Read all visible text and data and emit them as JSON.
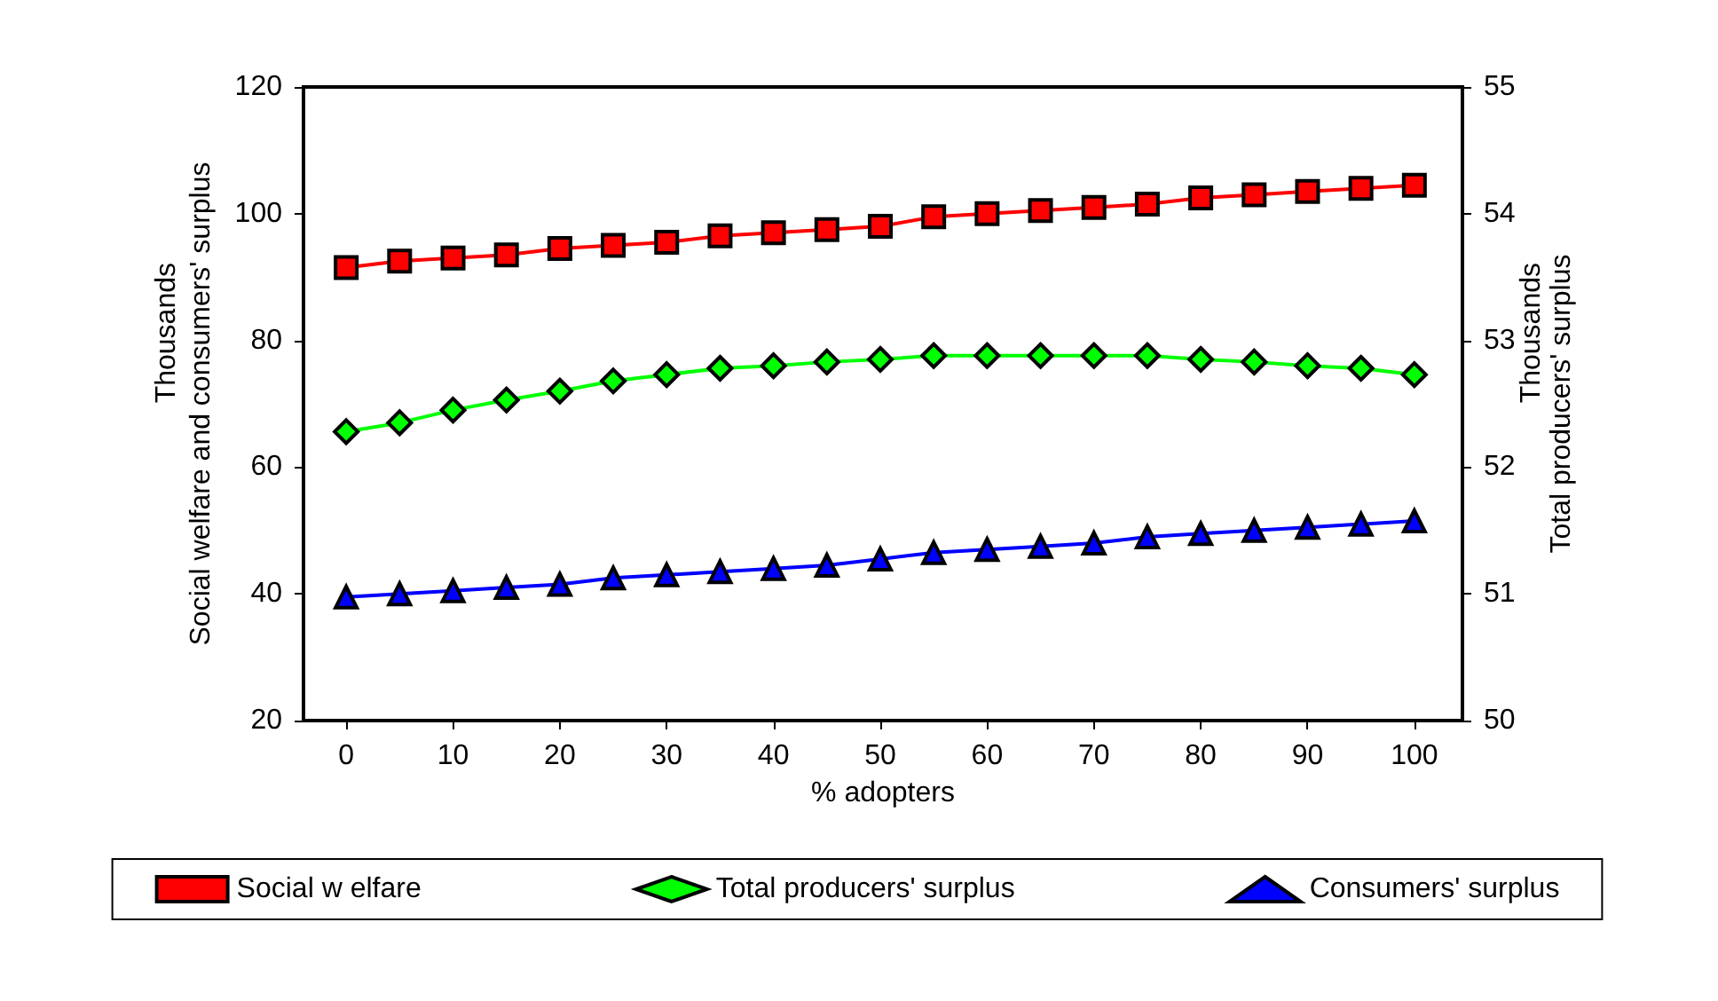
{
  "chart_data": {
    "type": "line",
    "xlabel": "% adopters",
    "ylabel": "Social welfare and consumers' surplus",
    "y2label": "Total producers' surplus",
    "annotations": [
      "Thousands",
      "Thousands"
    ],
    "x": [
      0,
      5,
      10,
      15,
      20,
      25,
      30,
      35,
      40,
      45,
      50,
      55,
      60,
      65,
      70,
      75,
      80,
      85,
      90,
      95,
      100
    ],
    "xlim": [
      -4,
      104.5
    ],
    "xticks": [
      0,
      10,
      20,
      30,
      40,
      50,
      60,
      70,
      80,
      90,
      100
    ],
    "ylim": [
      20,
      120
    ],
    "yticks": [
      20,
      40,
      60,
      80,
      100,
      120
    ],
    "y2lim": [
      50,
      55
    ],
    "y2ticks": [
      50,
      51,
      52,
      53,
      54,
      55
    ],
    "grid": false,
    "legend": "bottom",
    "line_style": "solid",
    "series": [
      {
        "name": "Social w elfare",
        "color": "#ff0000",
        "marker": "square",
        "values": [
          91.5,
          92.5,
          93,
          93.5,
          94.5,
          95,
          95.5,
          96.5,
          97,
          97.5,
          98,
          99.5,
          100,
          100.5,
          101,
          101.5,
          102.5,
          103,
          103.5,
          104,
          104.5
        ]
      },
      {
        "name": "Total producers' surplus",
        "color": "#00ff00",
        "marker": "diamond",
        "axis": "y2",
        "values": [
          52.28,
          52.35,
          52.45,
          52.53,
          52.6,
          52.68,
          52.73,
          52.78,
          52.8,
          52.83,
          52.85,
          52.88,
          52.88,
          52.88,
          52.88,
          52.88,
          52.85,
          52.83,
          52.8,
          52.78,
          52.73
        ]
      },
      {
        "name": "Consumers' surplus",
        "color": "#0000ff",
        "marker": "triangle",
        "values": [
          39.5,
          40,
          40.5,
          41,
          41.5,
          42.5,
          43,
          43.5,
          44,
          44.5,
          45.5,
          46.5,
          47,
          47.5,
          48,
          49,
          49.5,
          50,
          50.5,
          51,
          51.5
        ]
      }
    ]
  }
}
